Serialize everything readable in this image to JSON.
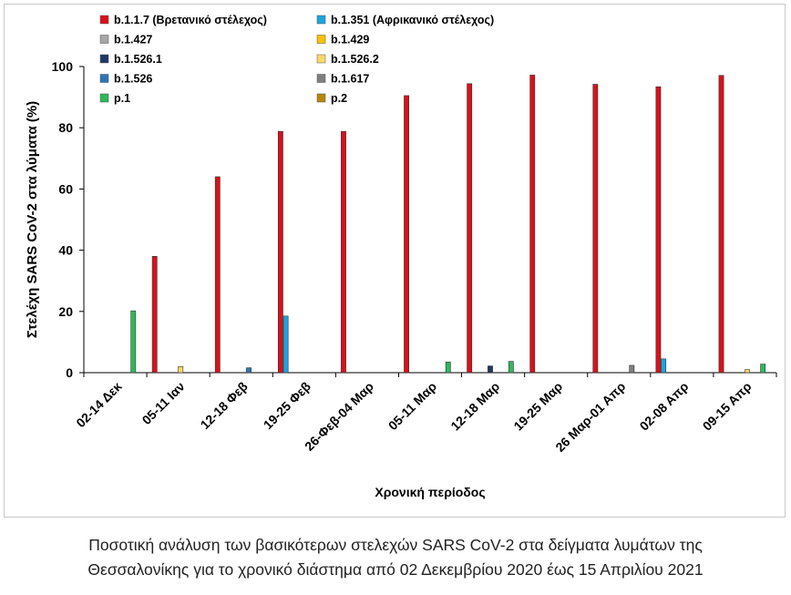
{
  "chart_data": {
    "type": "bar",
    "title": "",
    "xlabel": "Χρονική περίοδος",
    "ylabel": "Στελέχη SARS CoV-2 στα λύματα (%)",
    "ylim": [
      0,
      100
    ],
    "yticks": [
      0,
      20,
      40,
      60,
      80,
      100
    ],
    "grid": false,
    "legend_position": "top",
    "categories": [
      "02-14 Δεκ",
      "05-11 Ιαν",
      "12-18 Φεβ",
      "19-25 Φεβ",
      "26-Φεβ-04 Μαρ",
      "05-11 Μαρ",
      "12-18 Μαρ",
      "19-25 Μαρ",
      "26 Μαρ-01 Απρ",
      "02-08 Απρ",
      "09-15 Απρ"
    ],
    "series": [
      {
        "name": "b.1.1.7 (Βρετανικό στέλεχος)",
        "color": "#d9111a",
        "values": [
          0,
          38,
          64,
          78.8,
          78.8,
          90.5,
          94.4,
          97.2,
          94.2,
          93.4,
          97.1
        ]
      },
      {
        "name": "b.1.351 (Αφρικανικό στέλεχος)",
        "color": "#1aa6e2",
        "values": [
          0,
          0,
          0,
          18.5,
          0,
          0,
          0,
          0,
          0,
          4.5,
          0
        ]
      },
      {
        "name": "b.1.427",
        "color": "#a6a6a6",
        "values": [
          0,
          0,
          0,
          0,
          0,
          0,
          0,
          0,
          0,
          0,
          0
        ]
      },
      {
        "name": "b.1.429",
        "color": "#ffc000",
        "values": [
          0,
          0,
          0,
          0,
          0,
          0,
          0,
          0,
          0,
          0,
          0
        ]
      },
      {
        "name": "b.1.526.1",
        "color": "#203864",
        "values": [
          0,
          0,
          0,
          0,
          0,
          0,
          2.2,
          0,
          0,
          0,
          0
        ]
      },
      {
        "name": "b.1.526.2",
        "color": "#ffd966",
        "values": [
          0,
          2,
          0,
          0,
          0,
          0,
          0,
          0,
          0,
          0,
          1
        ]
      },
      {
        "name": "b.1.526",
        "color": "#2e75b6",
        "values": [
          0,
          0,
          1.6,
          0,
          0,
          0,
          0,
          0,
          0,
          0,
          0
        ]
      },
      {
        "name": "b.1.617",
        "color": "#7f7f7f",
        "values": [
          0,
          0,
          0,
          0,
          0,
          0,
          0,
          0,
          2.4,
          0,
          0
        ]
      },
      {
        "name": "p.1",
        "color": "#2eb85c",
        "values": [
          20.2,
          0,
          0,
          0,
          0,
          3.5,
          3.7,
          0,
          0,
          0,
          2.8
        ]
      },
      {
        "name": "p.2",
        "color": "#b8860b",
        "values": [
          0,
          0,
          0,
          0,
          0,
          0,
          0,
          0,
          0,
          0,
          0
        ]
      }
    ]
  },
  "caption": {
    "line1": "Ποσοτική ανάλυση των βασικότερων στελεχών SARS CoV-2 στα δείγματα λυμάτων της",
    "line2": "Θεσσαλονίκης για το χρονικό διάστημα από 02 Δεκεμβρίου 2020 έως 15 Απριλίου 2021"
  }
}
